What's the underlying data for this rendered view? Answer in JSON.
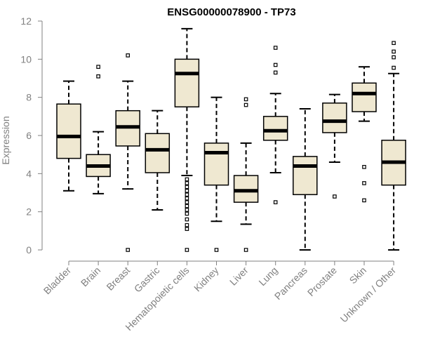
{
  "chart_data": {
    "type": "box",
    "title": "ENSG00000078900 - TP73",
    "xlabel": "",
    "ylabel": "Expression",
    "ylim": [
      0,
      12
    ],
    "yticks": [
      "0",
      "2",
      "4",
      "6",
      "8",
      "10",
      "12"
    ],
    "categories": [
      "Bladder",
      "Brain",
      "Breast",
      "Gastric",
      "Hematopoietic cells",
      "Kidney",
      "Liver",
      "Lung",
      "Pancreas",
      "Prostate",
      "Skin",
      "Unknown / Other"
    ],
    "series": [
      {
        "name": "Bladder",
        "whisker_low": 3.1,
        "q1": 4.8,
        "median": 5.95,
        "q3": 7.65,
        "whisker_high": 8.85,
        "outliers": []
      },
      {
        "name": "Brain",
        "whisker_low": 2.95,
        "q1": 3.85,
        "median": 4.4,
        "q3": 5.0,
        "whisker_high": 6.2,
        "outliers": [
          9.1,
          9.6
        ]
      },
      {
        "name": "Breast",
        "whisker_low": 3.2,
        "q1": 5.45,
        "median": 6.45,
        "q3": 7.3,
        "whisker_high": 8.85,
        "outliers": [
          0.0,
          10.2
        ]
      },
      {
        "name": "Gastric",
        "whisker_low": 2.1,
        "q1": 4.05,
        "median": 5.25,
        "q3": 6.1,
        "whisker_high": 7.3,
        "outliers": []
      },
      {
        "name": "Hematopoietic cells",
        "whisker_low": 3.9,
        "q1": 7.5,
        "median": 9.25,
        "q3": 10.0,
        "whisker_high": 11.6,
        "outliers": [
          0.0,
          1.1,
          1.3,
          1.6,
          1.9,
          2.1,
          2.3,
          2.5,
          2.7,
          2.9,
          3.1,
          3.3,
          3.5,
          3.7
        ]
      },
      {
        "name": "Kidney",
        "whisker_low": 1.5,
        "q1": 3.4,
        "median": 5.1,
        "q3": 5.6,
        "whisker_high": 8.0,
        "outliers": [
          0.0
        ]
      },
      {
        "name": "Liver",
        "whisker_low": 1.35,
        "q1": 2.5,
        "median": 3.1,
        "q3": 3.9,
        "whisker_high": 5.6,
        "outliers": [
          0.0,
          7.6,
          7.9
        ]
      },
      {
        "name": "Lung",
        "whisker_low": 4.05,
        "q1": 5.75,
        "median": 6.25,
        "q3": 7.0,
        "whisker_high": 8.2,
        "outliers": [
          2.5,
          9.3,
          9.7,
          10.6
        ]
      },
      {
        "name": "Pancreas",
        "whisker_low": 0.0,
        "q1": 2.9,
        "median": 4.4,
        "q3": 4.9,
        "whisker_high": 7.4,
        "outliers": []
      },
      {
        "name": "Prostate",
        "whisker_low": 4.6,
        "q1": 6.15,
        "median": 6.75,
        "q3": 7.7,
        "whisker_high": 8.15,
        "outliers": [
          2.8
        ]
      },
      {
        "name": "Skin",
        "whisker_low": 6.75,
        "q1": 7.25,
        "median": 8.2,
        "q3": 8.75,
        "whisker_high": 9.6,
        "outliers": [
          2.6,
          3.5,
          4.35
        ]
      },
      {
        "name": "Unknown / Other",
        "whisker_low": 0.0,
        "q1": 3.4,
        "median": 4.6,
        "q3": 5.75,
        "whisker_high": 9.25,
        "outliers": [
          9.55,
          10.1,
          10.4,
          10.85
        ]
      }
    ],
    "colors": {
      "box_fill": "#efe8d1",
      "box_stroke": "#000000",
      "axis": "#808080",
      "median": "#000000"
    }
  }
}
